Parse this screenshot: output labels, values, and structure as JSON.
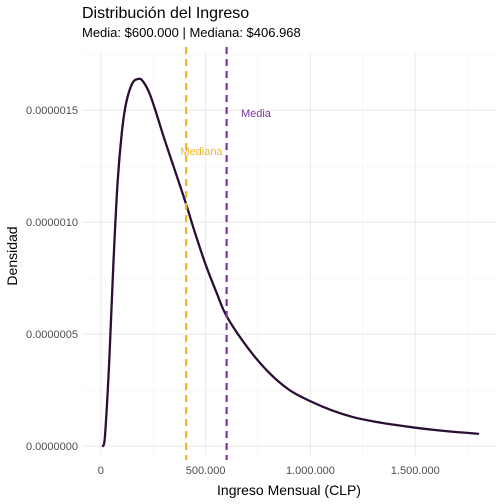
{
  "chart_data": {
    "type": "line",
    "title": "Distribución del Ingreso",
    "subtitle": "Media: $600.000 | Mediana: $406.968",
    "xlabel": "Ingreso Mensual (CLP)",
    "ylabel": "Densidad",
    "xlim": [
      -90000,
      1890000
    ],
    "ylim": [
      -4e-08,
      1.76e-06
    ],
    "x_ticks": [
      {
        "value": 0,
        "label": "0"
      },
      {
        "value": 500000,
        "label": "500.000"
      },
      {
        "value": 1000000,
        "label": "1.000.000"
      },
      {
        "value": 1500000,
        "label": "1.500.000"
      }
    ],
    "y_ticks": [
      {
        "value": 0,
        "label": "0.0000000"
      },
      {
        "value": 5e-07,
        "label": "0.0000005"
      },
      {
        "value": 1e-06,
        "label": "0.0000010"
      },
      {
        "value": 1.5e-06,
        "label": "0.0000015"
      }
    ],
    "grid": true,
    "series": [
      {
        "color": "#2b0f33",
        "x": [
          10000,
          20000,
          40000,
          60000,
          80000,
          100000,
          120000,
          150000,
          180000,
          200000,
          230000,
          260000,
          300000,
          350000,
          400000,
          450000,
          500000,
          550000,
          600000,
          700000,
          800000,
          900000,
          1000000,
          1100000,
          1200000,
          1300000,
          1400000,
          1500000,
          1600000,
          1700000,
          1800000
        ],
        "y": [
          0.0,
          5e-08,
          3.8e-07,
          8.2e-07,
          1.18e-06,
          1.4e-06,
          1.53e-06,
          1.62e-06,
          1.64e-06,
          1.63e-06,
          1.58e-06,
          1.5e-06,
          1.38e-06,
          1.24e-06,
          1.1e-06,
          9.5e-07,
          8.1e-07,
          6.9e-07,
          5.8e-07,
          4.4e-07,
          3.3e-07,
          2.5e-07,
          2e-07,
          1.6e-07,
          1.3e-07,
          1.1e-07,
          9.5e-08,
          8.2e-08,
          7.1e-08,
          6.2e-08,
          5.5e-08
        ]
      }
    ],
    "vlines": [
      {
        "x": 406968,
        "color": "#f0b429",
        "label": "Mediana",
        "label_x": 480000,
        "label_y": 1.3e-06
      },
      {
        "x": 600000,
        "color": "#7b35a0",
        "label": "Media",
        "label_x": 740000,
        "label_y": 1.47e-06
      }
    ]
  }
}
